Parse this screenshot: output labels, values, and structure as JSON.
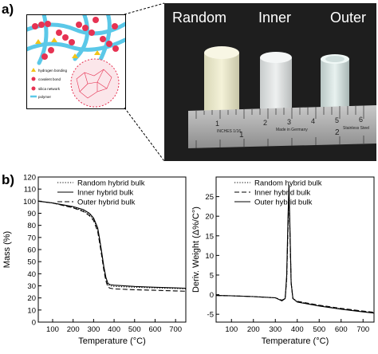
{
  "panel_a": {
    "letter": "a)",
    "labels": [
      "Random",
      "Inner",
      "Outer"
    ],
    "legend": [
      "hydrogen bonding",
      "covalent bond",
      "silica network",
      "polymer"
    ],
    "ruler_text": [
      "INCHES 1/16",
      "Made in Germany",
      "Stainless Steel"
    ],
    "ruler_numbers": [
      "1",
      "2",
      "3",
      "4",
      "5",
      "6",
      "1",
      "2"
    ]
  },
  "panel_b": {
    "letter": "b)"
  },
  "chart_data": [
    {
      "type": "line",
      "xlabel": "Temperature (°C)",
      "ylabel": "Mass (%)",
      "xlim": [
        30,
        750
      ],
      "ylim": [
        0,
        120
      ],
      "xticks": [
        100,
        200,
        300,
        400,
        500,
        600,
        700
      ],
      "yticks": [
        0,
        10,
        20,
        30,
        40,
        50,
        60,
        70,
        80,
        90,
        100,
        110,
        120
      ],
      "legend_position": "top-right",
      "series": [
        {
          "name": "Random hybrid bulk",
          "style": "dotted",
          "x": [
            30,
            100,
            200,
            250,
            280,
            300,
            320,
            330,
            340,
            350,
            360,
            370,
            380,
            400,
            500,
            600,
            700,
            750
          ],
          "y": [
            100,
            98.5,
            95,
            92,
            89,
            85,
            77,
            67,
            56,
            45,
            36,
            31,
            30,
            29.5,
            28.8,
            28.3,
            27.8,
            27.5
          ]
        },
        {
          "name": "Inner hybrid bulk",
          "style": "solid",
          "x": [
            30,
            100,
            200,
            250,
            280,
            300,
            320,
            330,
            340,
            350,
            360,
            370,
            380,
            400,
            500,
            600,
            700,
            750
          ],
          "y": [
            100,
            98.5,
            95.5,
            93,
            90,
            86,
            78,
            68,
            57,
            46,
            37,
            32,
            31,
            30.5,
            29.5,
            28.8,
            28.3,
            28
          ]
        },
        {
          "name": "Outer hybrid bulk",
          "style": "dashed",
          "x": [
            30,
            100,
            200,
            250,
            280,
            300,
            320,
            330,
            340,
            350,
            360,
            370,
            380,
            400,
            500,
            600,
            700,
            750
          ],
          "y": [
            100,
            98.5,
            94.5,
            91.5,
            88,
            84,
            75,
            65,
            54,
            43,
            34,
            29,
            28,
            27.5,
            26.8,
            26.3,
            25.8,
            25.5
          ]
        }
      ]
    },
    {
      "type": "line",
      "xlabel": "Temperature (°C)",
      "ylabel": "Deriv. Weight (Δ%/C°)",
      "xlim": [
        30,
        750
      ],
      "ylim": [
        -7,
        30
      ],
      "xticks": [
        100,
        200,
        300,
        400,
        500,
        600,
        700
      ],
      "yticks": [
        -5,
        0,
        5,
        10,
        15,
        20,
        25
      ],
      "legend_position": "top-right",
      "series": [
        {
          "name": "Random hybrid bulk",
          "style": "dotted",
          "x": [
            30,
            100,
            200,
            300,
            330,
            345,
            352,
            358,
            362,
            366,
            372,
            380,
            400,
            500,
            600,
            700,
            750
          ],
          "y": [
            -0.2,
            -0.3,
            -0.5,
            -0.8,
            -1.5,
            -1,
            4,
            18,
            27,
            18,
            3,
            -1,
            -1.8,
            -2.8,
            -3.6,
            -4.3,
            -4.6
          ]
        },
        {
          "name": "Inner hybrid bulk",
          "style": "dashed",
          "x": [
            30,
            100,
            200,
            300,
            330,
            345,
            352,
            358,
            362,
            366,
            372,
            380,
            400,
            500,
            600,
            700,
            750
          ],
          "y": [
            -0.2,
            -0.3,
            -0.5,
            -0.8,
            -1.4,
            -1,
            4,
            17,
            26,
            17,
            3,
            -1,
            -1.7,
            -2.7,
            -3.5,
            -4.2,
            -4.5
          ]
        },
        {
          "name": "Outer hybrid bulk",
          "style": "solid",
          "x": [
            30,
            100,
            200,
            300,
            330,
            345,
            352,
            358,
            362,
            366,
            372,
            380,
            400,
            500,
            600,
            700,
            750
          ],
          "y": [
            -0.2,
            -0.3,
            -0.5,
            -0.8,
            -1.6,
            -1,
            5,
            20,
            28,
            19,
            3,
            -1,
            -1.9,
            -2.9,
            -3.7,
            -4.4,
            -4.7
          ]
        }
      ]
    }
  ]
}
